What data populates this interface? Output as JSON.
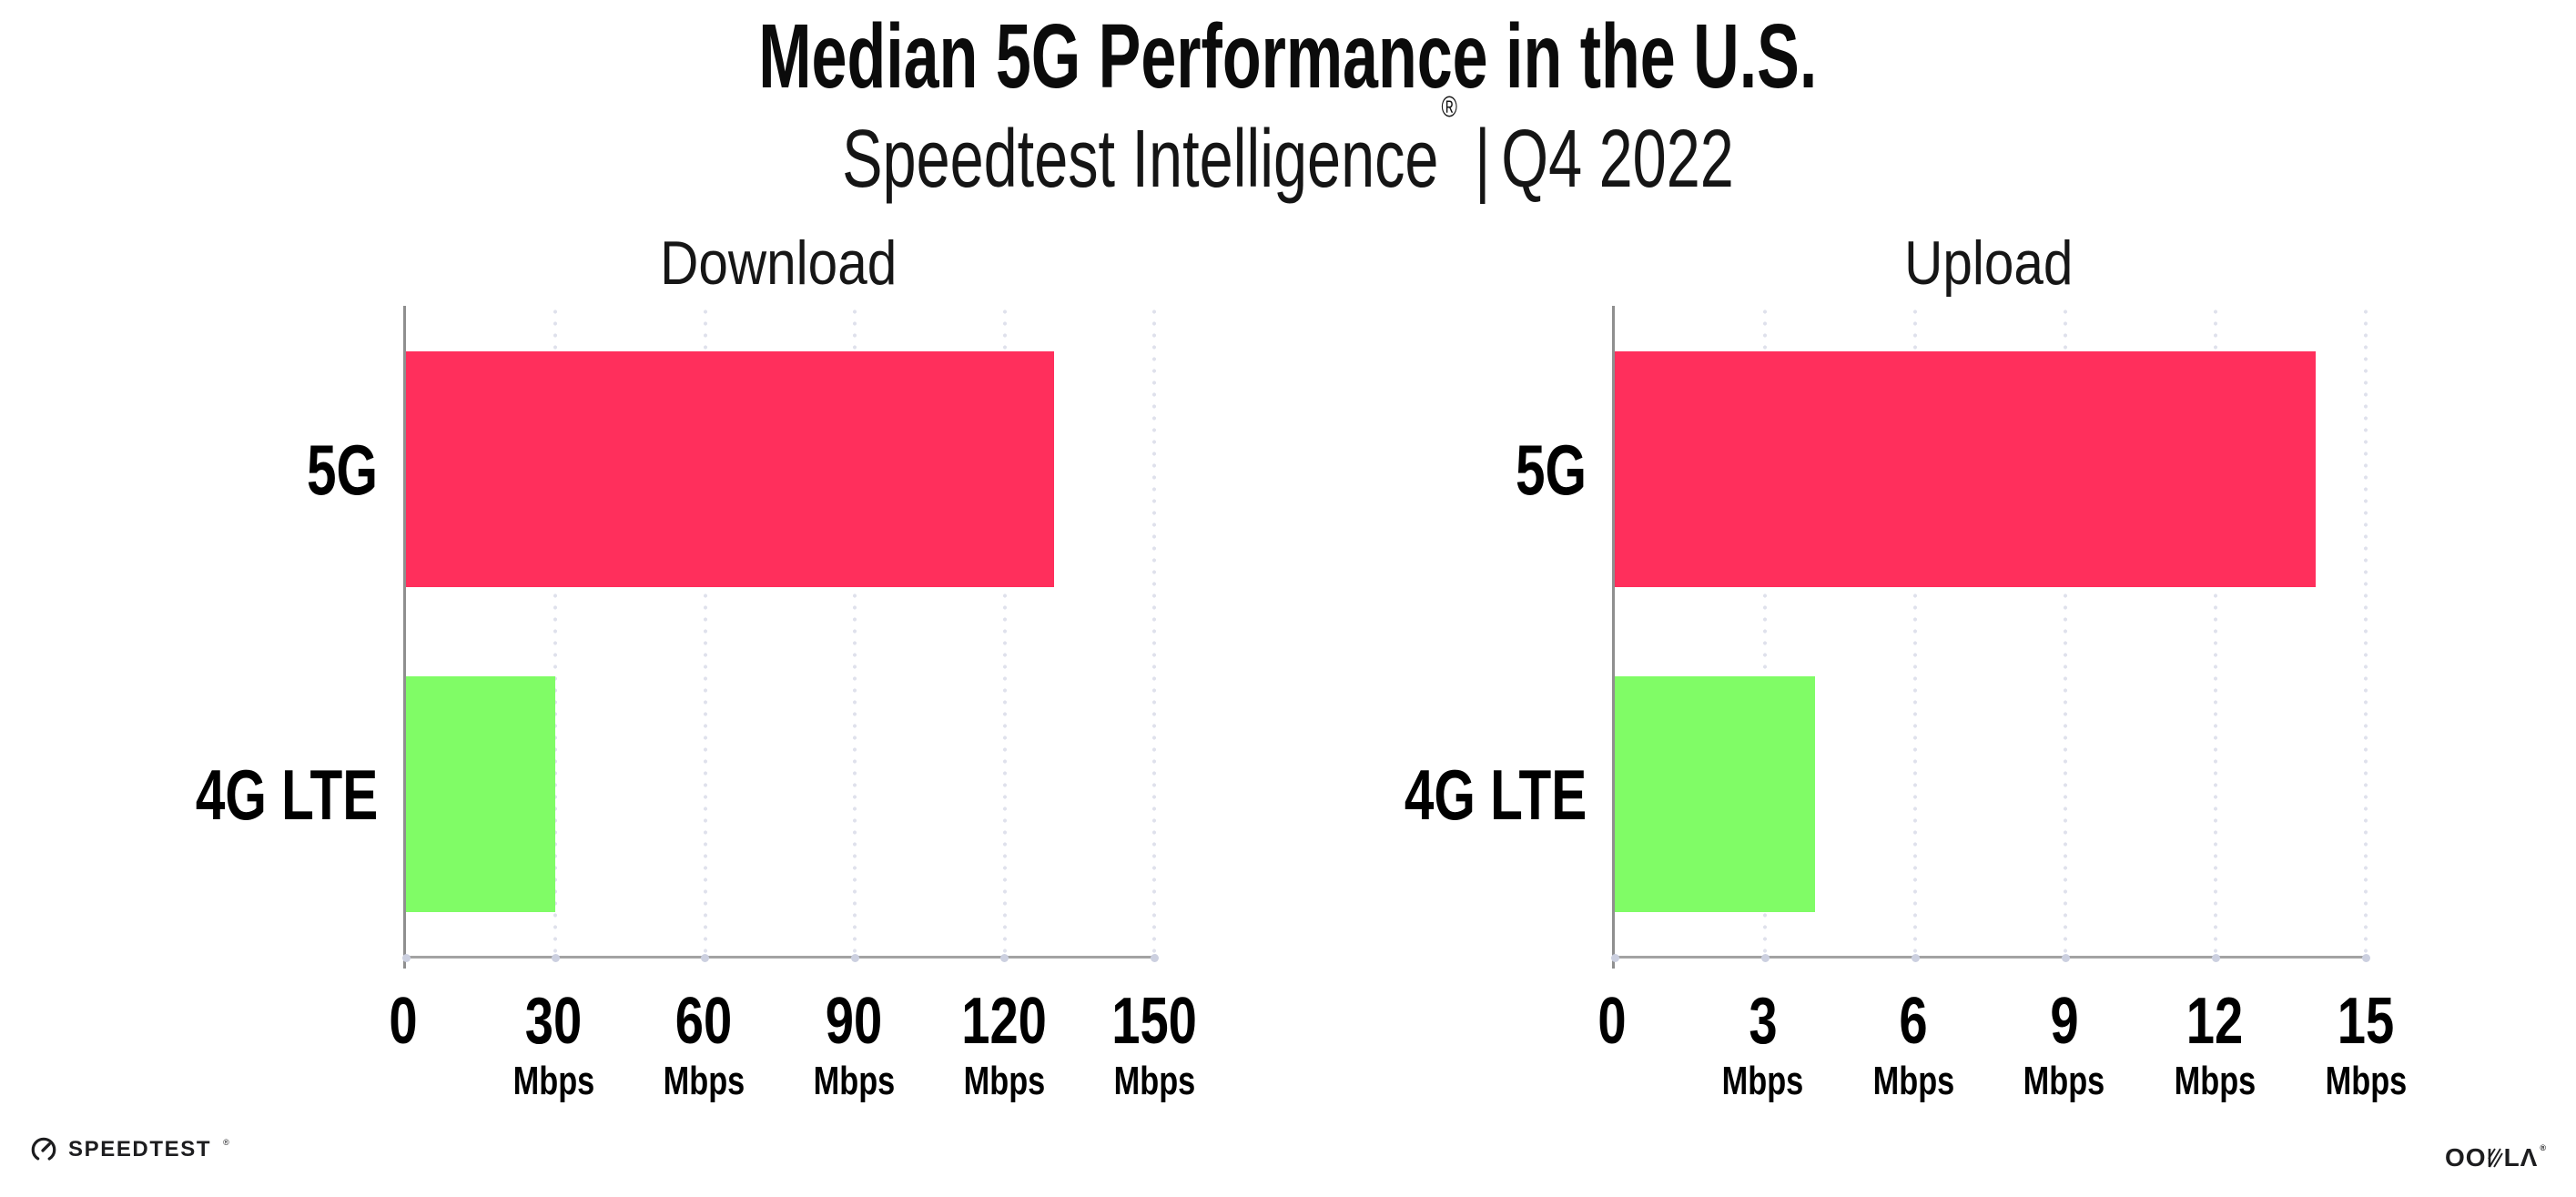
{
  "header": {
    "title": "Median 5G Performance in the U.S.",
    "subtitle_brand": "Speedtest Intelligence",
    "subtitle_reg": "®",
    "subtitle_sep": "|",
    "subtitle_period": "Q4 2022"
  },
  "footer": {
    "speedtest_wordmark": "SPEEDTEST",
    "speedtest_reg": "®",
    "ookla_prefix": "OO",
    "ookla_suffix": "LΛ",
    "ookla_reg": "®"
  },
  "colors": {
    "bar_5g": "#FF2F5C",
    "bar_4g_lte": "#80FC66",
    "axis_y": "#8f8f8f",
    "axis_x": "#a3a3a3",
    "grid_dot": "#dfe1ec",
    "tick_dot": "#ccd0e0"
  },
  "chart_data": [
    {
      "type": "bar",
      "orientation": "horizontal",
      "title": "Download",
      "categories": [
        "5G",
        "4G LTE"
      ],
      "values": [
        130,
        30
      ],
      "unit": "Mbps",
      "xlim": [
        0,
        150
      ],
      "xticks": [
        0,
        30,
        60,
        90,
        120,
        150
      ],
      "bar_colors": [
        "#FF2F5C",
        "#80FC66"
      ],
      "grid": "dotted-vertical",
      "legend": "none"
    },
    {
      "type": "bar",
      "orientation": "horizontal",
      "title": "Upload",
      "categories": [
        "5G",
        "4G LTE"
      ],
      "values": [
        14,
        4
      ],
      "unit": "Mbps",
      "xlim": [
        0,
        15
      ],
      "xticks": [
        0,
        3,
        6,
        9,
        12,
        15
      ],
      "bar_colors": [
        "#FF2F5C",
        "#80FC66"
      ],
      "grid": "dotted-vertical",
      "legend": "none"
    }
  ]
}
